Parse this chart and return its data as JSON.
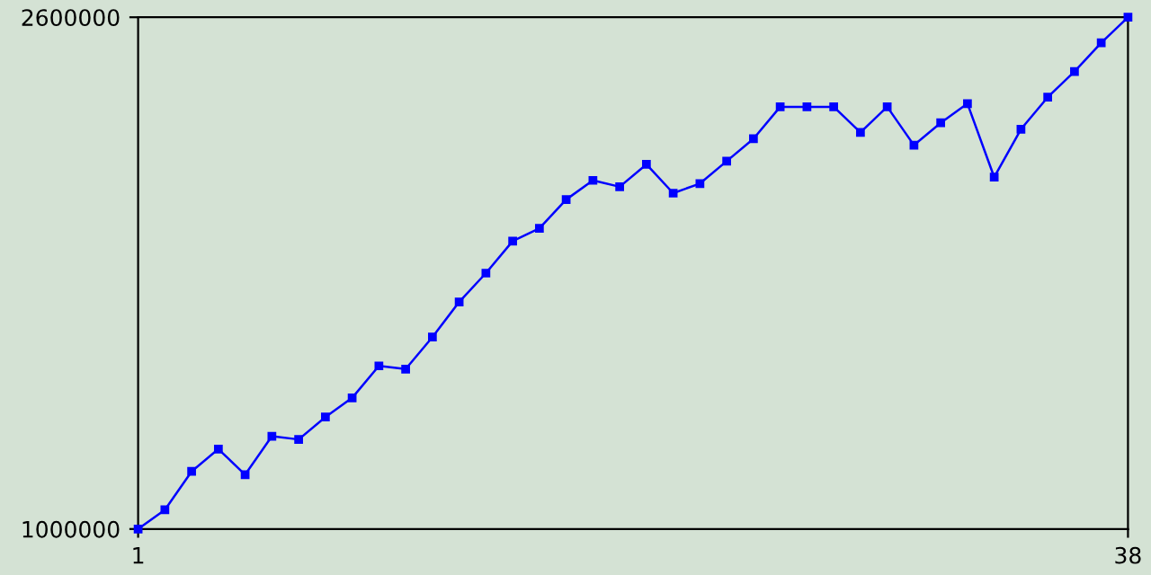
{
  "chart_data": {
    "type": "line",
    "x": [
      1,
      2,
      3,
      4,
      5,
      6,
      7,
      8,
      9,
      10,
      11,
      12,
      13,
      14,
      15,
      16,
      17,
      18,
      19,
      20,
      21,
      22,
      23,
      24,
      25,
      26,
      27,
      28,
      29,
      30,
      31,
      32,
      33,
      34,
      35,
      36,
      37,
      38
    ],
    "series": [
      {
        "color": "#0000ff",
        "values": [
          1000000,
          1060000,
          1180000,
          1250000,
          1170000,
          1290000,
          1280000,
          1350000,
          1410000,
          1510000,
          1500000,
          1600000,
          1710000,
          1800000,
          1900000,
          1940000,
          2030000,
          2090000,
          2070000,
          2140000,
          2050000,
          2080000,
          2150000,
          2220000,
          2320000,
          2320000,
          2320000,
          2240000,
          2320000,
          2200000,
          2270000,
          2330000,
          2100000,
          2250000,
          2350000,
          2430000,
          2520000,
          2600000
        ]
      }
    ],
    "xlim": [
      1,
      38
    ],
    "ylim": [
      1000000,
      2600000
    ],
    "xticks": [
      1,
      38
    ],
    "yticks": [
      1000000,
      2600000
    ],
    "marker": "square",
    "line_style": "solid",
    "grid": false,
    "legend": false
  }
}
